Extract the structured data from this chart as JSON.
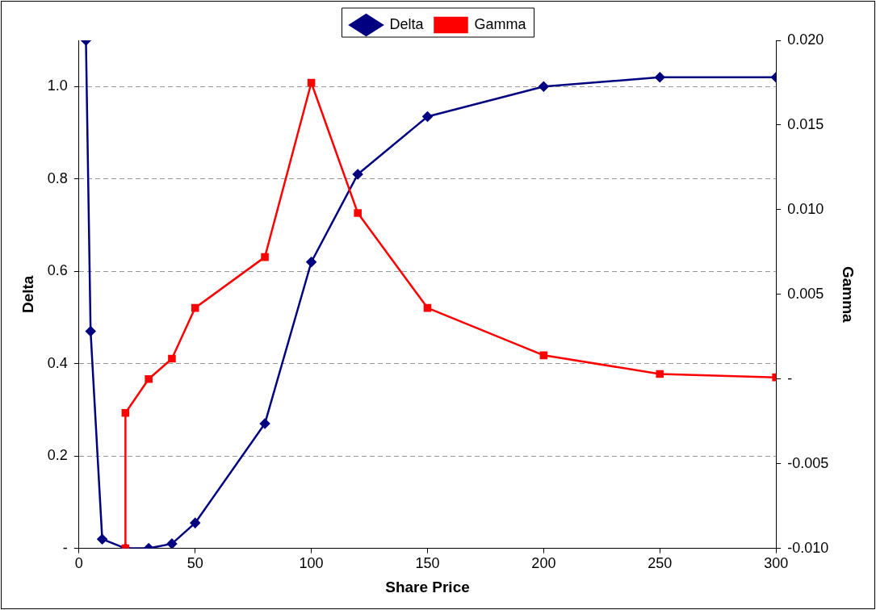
{
  "chart_data": {
    "type": "line",
    "xlabel": "Share Price",
    "ylabel": "Delta",
    "y2label": "Gamma",
    "xlim": [
      0,
      300
    ],
    "xticks": [
      0,
      50,
      100,
      150,
      200,
      250,
      300
    ],
    "ylim": [
      0,
      1.1
    ],
    "yticks": [
      {
        "value": 0,
        "label": "-"
      },
      0.2,
      0.4,
      0.6,
      0.8,
      {
        "value": 1,
        "label": "1.0"
      }
    ],
    "y2lim": [
      -0.01,
      0.02
    ],
    "y2ticks": [
      {
        "value": -0.01,
        "label": "-0.010"
      },
      -0.005,
      {
        "value": 0,
        "label": "-"
      },
      0.005,
      {
        "value": 0.01,
        "label": "0.010"
      },
      0.015,
      {
        "value": 0.02,
        "label": "0.020"
      }
    ],
    "grid": "y",
    "legend": "top",
    "series": [
      {
        "name": "Delta",
        "color": "#000080",
        "marker": "diamond",
        "x": [
          3,
          5,
          10,
          20,
          30,
          40,
          50,
          80,
          100,
          120,
          150,
          200,
          250,
          300
        ],
        "values": [
          1.1,
          0.47,
          0.02,
          0,
          0,
          0.01,
          0.055,
          0.27,
          0.62,
          0.81,
          0.935,
          1.0,
          1.02,
          1.02
        ]
      },
      {
        "name": "Gamma",
        "color": "#ff0000",
        "marker": "square",
        "axis": "y2",
        "x": [
          20,
          20,
          30,
          40,
          50,
          80,
          100,
          120,
          150,
          200,
          250,
          300
        ],
        "values": [
          -0.01,
          -0.002,
          0.0,
          0.0012,
          0.0042,
          0.0072,
          0.0175,
          0.0098,
          0.0042,
          0.0014,
          0.0003,
          0.0001
        ]
      }
    ]
  }
}
